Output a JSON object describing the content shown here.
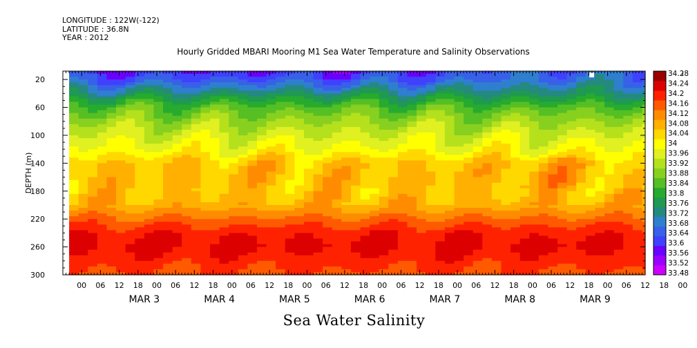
{
  "header": {
    "longitude": "LONGITUDE : 122W(-122)",
    "latitude": "LATITUDE : 36.8N",
    "year": "YEAR : 2012"
  },
  "bottom_label": "Sea Water Salinity",
  "chart_data": {
    "type": "heatmap",
    "title": "Hourly Gridded MBARI Mooring M1 Sea Water Temperature and Salinity Observations",
    "ylabel": "DEPTH (m)",
    "y_ticks": [
      20,
      60,
      100,
      140,
      180,
      220,
      260,
      300
    ],
    "ylim": [
      300,
      0
    ],
    "x_hour_ticks": [
      "00",
      "06",
      "12",
      "18",
      "00",
      "06",
      "12",
      "18",
      "00",
      "06",
      "12",
      "18",
      "00",
      "06",
      "12",
      "18",
      "00",
      "06",
      "12",
      "18",
      "00",
      "06",
      "12",
      "18",
      "00",
      "06",
      "12",
      "18",
      "00",
      "06",
      "12",
      "18",
      "00",
      "06",
      "12",
      "18"
    ],
    "x_day_labels": [
      {
        "label": "MAR 3",
        "day": 3
      },
      {
        "label": "MAR 4",
        "day": 4
      },
      {
        "label": "MAR 5",
        "day": 5
      },
      {
        "label": "MAR 6",
        "day": 6
      },
      {
        "label": "MAR 7",
        "day": 7
      },
      {
        "label": "MAR 8",
        "day": 8
      },
      {
        "label": "MAR 9",
        "day": 9
      }
    ],
    "time_range": {
      "start": "MAR 2 00:00",
      "end": "MAR 9 18:00",
      "data_start": "MAR 2 02:00"
    },
    "colorbar_levels": [
      33.48,
      33.52,
      33.56,
      33.6,
      33.64,
      33.68,
      33.72,
      33.76,
      33.8,
      33.84,
      33.88,
      33.92,
      33.96,
      34,
      34.04,
      34.08,
      34.12,
      34.16,
      34.2,
      34.24,
      34.28
    ],
    "colorbar_labels": [
      "34.28",
      "34.24",
      "34.2",
      "34.16",
      "34.12",
      "34.08",
      "34.04",
      "34",
      "33.96",
      "33.92",
      "33.88",
      "33.84",
      "33.8",
      "33.76",
      "33.72",
      "33.68",
      "33.64",
      "33.6",
      "33.56",
      "33.52",
      "33.48"
    ],
    "colors": [
      "#cc00ff",
      "#9a00ff",
      "#6a00ff",
      "#4040ff",
      "#3860e8",
      "#2f7fcf",
      "#248a80",
      "#1f9a50",
      "#27ab2e",
      "#55bf24",
      "#88d020",
      "#b5e01c",
      "#e0f020",
      "#ffff00",
      "#ffd800",
      "#ffb000",
      "#ff8c00",
      "#ff5a00",
      "#ff2200",
      "#dd0000",
      "#990000"
    ],
    "profile_depth_m": [
      8,
      20,
      40,
      60,
      80,
      100,
      120,
      140,
      160,
      180,
      200,
      220,
      240,
      260,
      280,
      300
    ],
    "profile_salinity": [
      33.66,
      33.68,
      33.76,
      33.86,
      33.92,
      33.97,
      34.01,
      34.08,
      34.09,
      34.08,
      34.1,
      34.17,
      34.23,
      34.25,
      34.22,
      34.19
    ]
  }
}
